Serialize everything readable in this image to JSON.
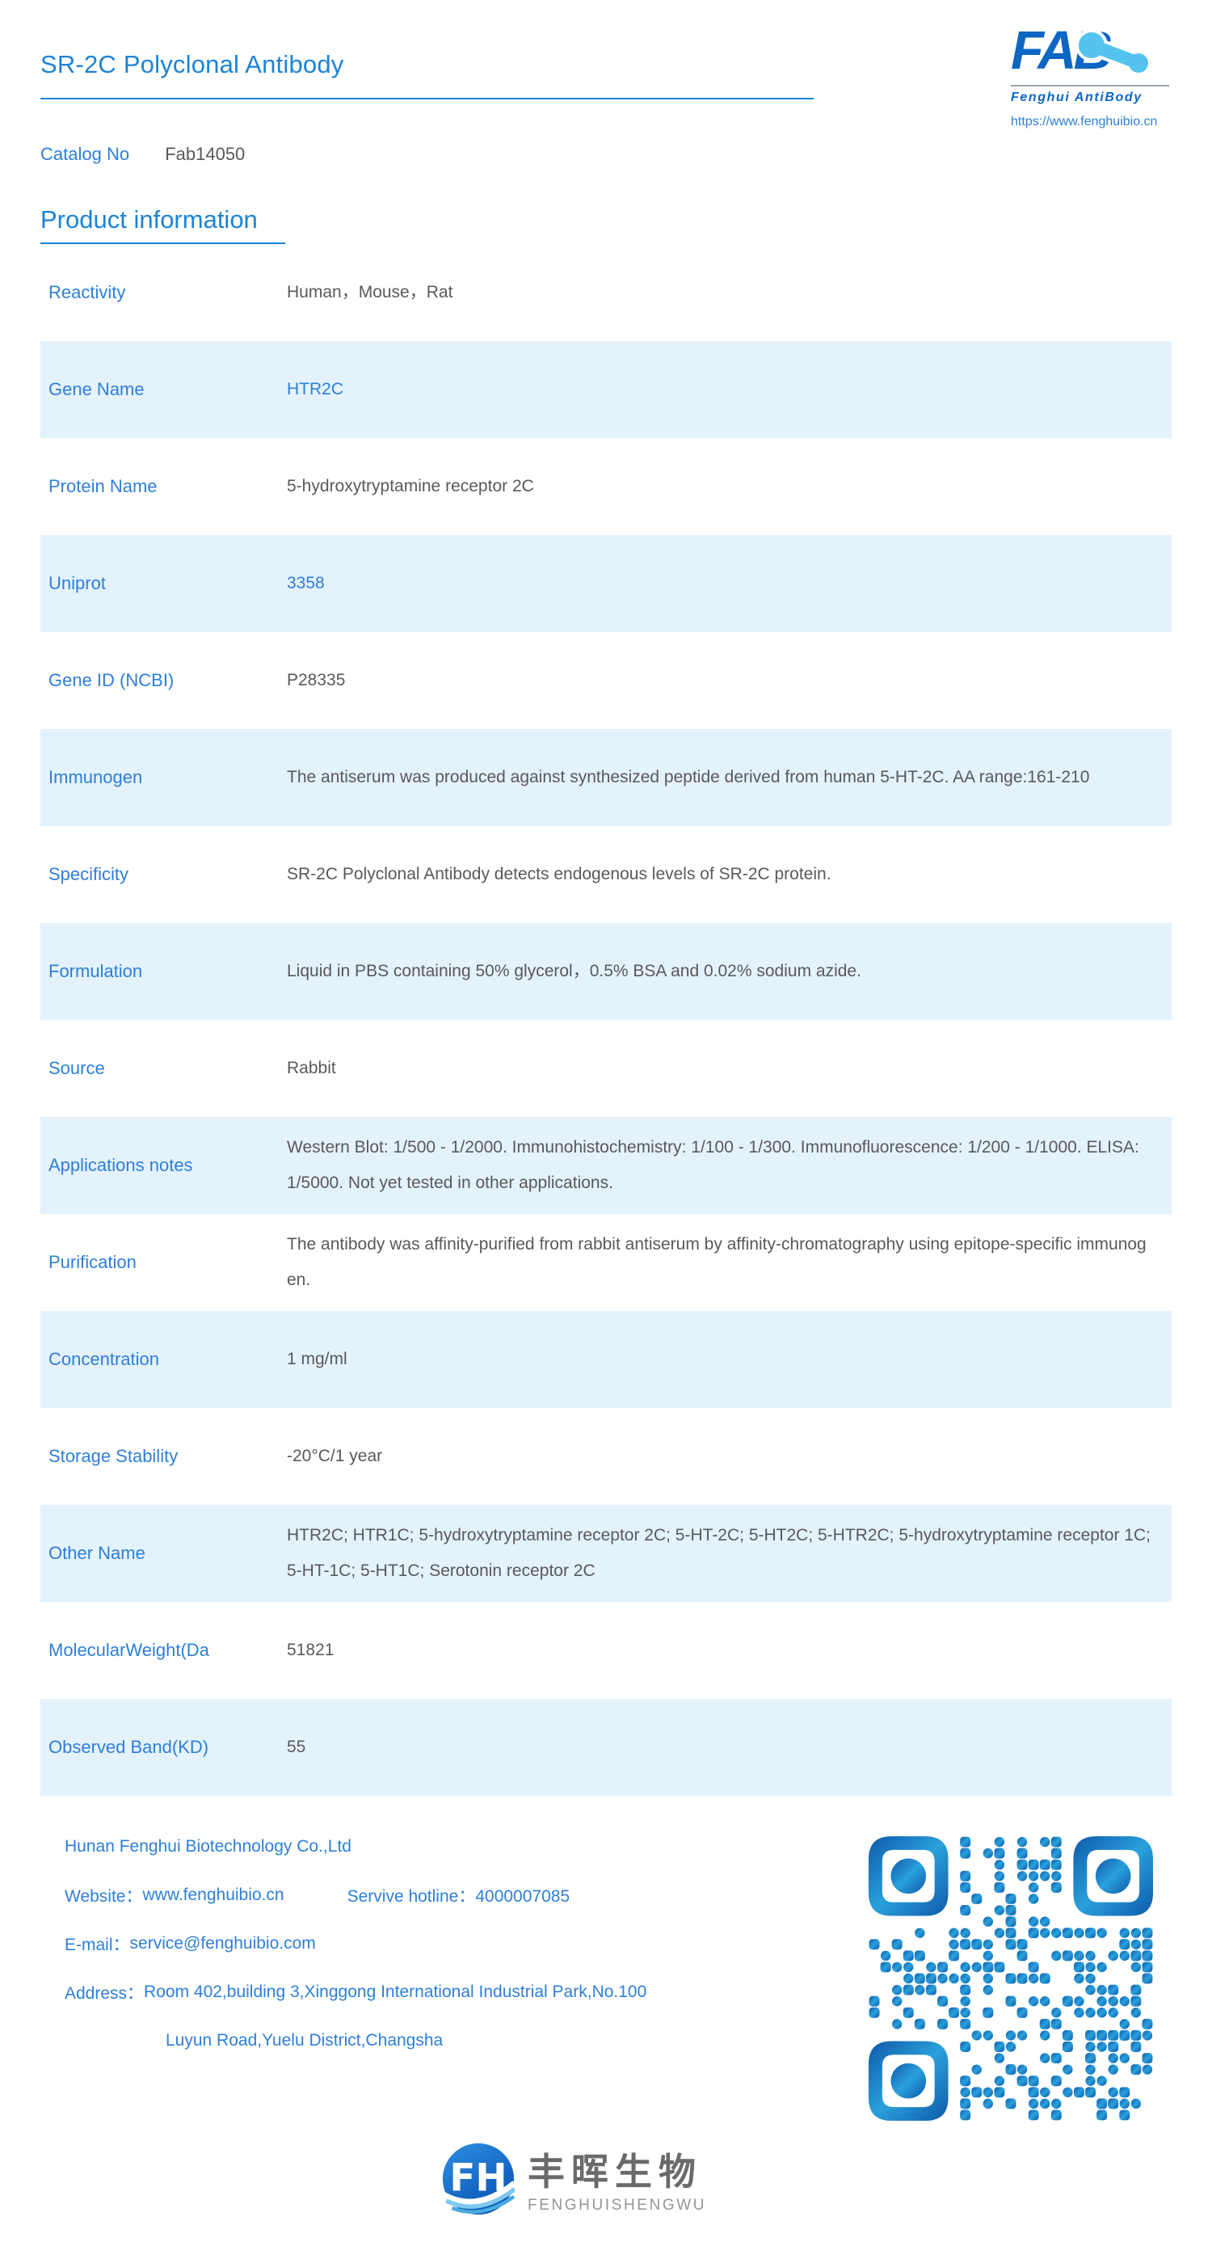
{
  "header": {
    "title": "SR-2C Polyclonal Antibody",
    "catalog_label": "Catalog No",
    "catalog_value": "Fab14050",
    "logo": {
      "text": "FAB",
      "subtitle": "Fenghui AntiBody",
      "url": "https://www.fenghuibio.cn"
    }
  },
  "section": {
    "title": "Product information"
  },
  "table": {
    "rows": [
      {
        "label": "Reactivity",
        "value": "Human，Mouse，Rat",
        "highlight": false,
        "link": false
      },
      {
        "label": "Gene Name",
        "value": "HTR2C",
        "highlight": true,
        "link": true
      },
      {
        "label": "Protein Name",
        "value": "5-hydroxytryptamine receptor 2C",
        "highlight": false,
        "link": false
      },
      {
        "label": "Uniprot",
        "value": "3358",
        "highlight": true,
        "link": true
      },
      {
        "label": "Gene ID (NCBI)",
        "value": "P28335",
        "highlight": false,
        "link": false
      },
      {
        "label": "Immunogen",
        "value": "The antiserum was produced against synthesized peptide derived from human 5-HT-2C. AA range:161-210",
        "highlight": true,
        "link": false
      },
      {
        "label": "Specificity",
        "value": "SR-2C Polyclonal Antibody detects endogenous levels of SR-2C protein.",
        "highlight": false,
        "link": false
      },
      {
        "label": "Formulation",
        "value": "Liquid in PBS containing 50% glycerol，0.5% BSA and 0.02% sodium azide.",
        "highlight": true,
        "link": false
      },
      {
        "label": "Source",
        "value": "Rabbit",
        "highlight": false,
        "link": false
      },
      {
        "label": "Applications notes",
        "value": "Western Blot: 1/500 - 1/2000. Immunohistochemistry: 1/100 - 1/300. Immunofluorescence: 1/200 - 1/1000. ELISA: 1/5000. Not yet tested in other applications.",
        "highlight": true,
        "link": false
      },
      {
        "label": "Purification",
        "value": "The antibody was affinity-purified from rabbit antiserum by affinity-chromatography using epitope-specific immunogen.",
        "highlight": false,
        "link": false
      },
      {
        "label": "Concentration",
        "value": "1 mg/ml",
        "highlight": true,
        "link": false
      },
      {
        "label": "Storage Stability",
        "value": "-20°C/1 year",
        "highlight": false,
        "link": false
      },
      {
        "label": "Other Name",
        "value": "HTR2C; HTR1C; 5-hydroxytryptamine receptor 2C; 5-HT-2C; 5-HT2C; 5-HTR2C; 5-hydroxytryptamine receptor 1C; 5-HT-1C; 5-HT1C; Serotonin receptor 2C",
        "highlight": true,
        "link": false
      },
      {
        "label": "MolecularWeight(Da",
        "value": "51821",
        "highlight": false,
        "link": false
      },
      {
        "label": "Observed Band(KD)",
        "value": "55",
        "highlight": true,
        "link": false
      }
    ]
  },
  "footer": {
    "company": "Hunan Fenghui Biotechnology Co.,Ltd",
    "website_label": "Website：",
    "website": "www.fenghuibio.cn",
    "hotline_label": "Servive hotline：",
    "hotline": "4000007085",
    "email_label": "E-mail：",
    "email": "service@fenghuibio.com",
    "address_label": "Address：",
    "address_line1": "Room 402,building 3,Xinggong International Industrial Park,No.100",
    "address_line2": "Luyun Road,Yuelu District,Changsha"
  },
  "bottom_logo": {
    "monogram": "FH",
    "cn": "丰晖生物",
    "en": "FENGHUISHENGWU"
  },
  "colors": {
    "title_blue": "#1c83d6",
    "label_blue": "#2e7fd6",
    "logo_blue": "#0d66c3",
    "molecule_lightblue": "#54c3ee",
    "value_gray": "#58595b",
    "row_highlight": "#e4f2fc",
    "qr_dark": "#0e5aa8",
    "qr_light": "#2aa0dc"
  }
}
